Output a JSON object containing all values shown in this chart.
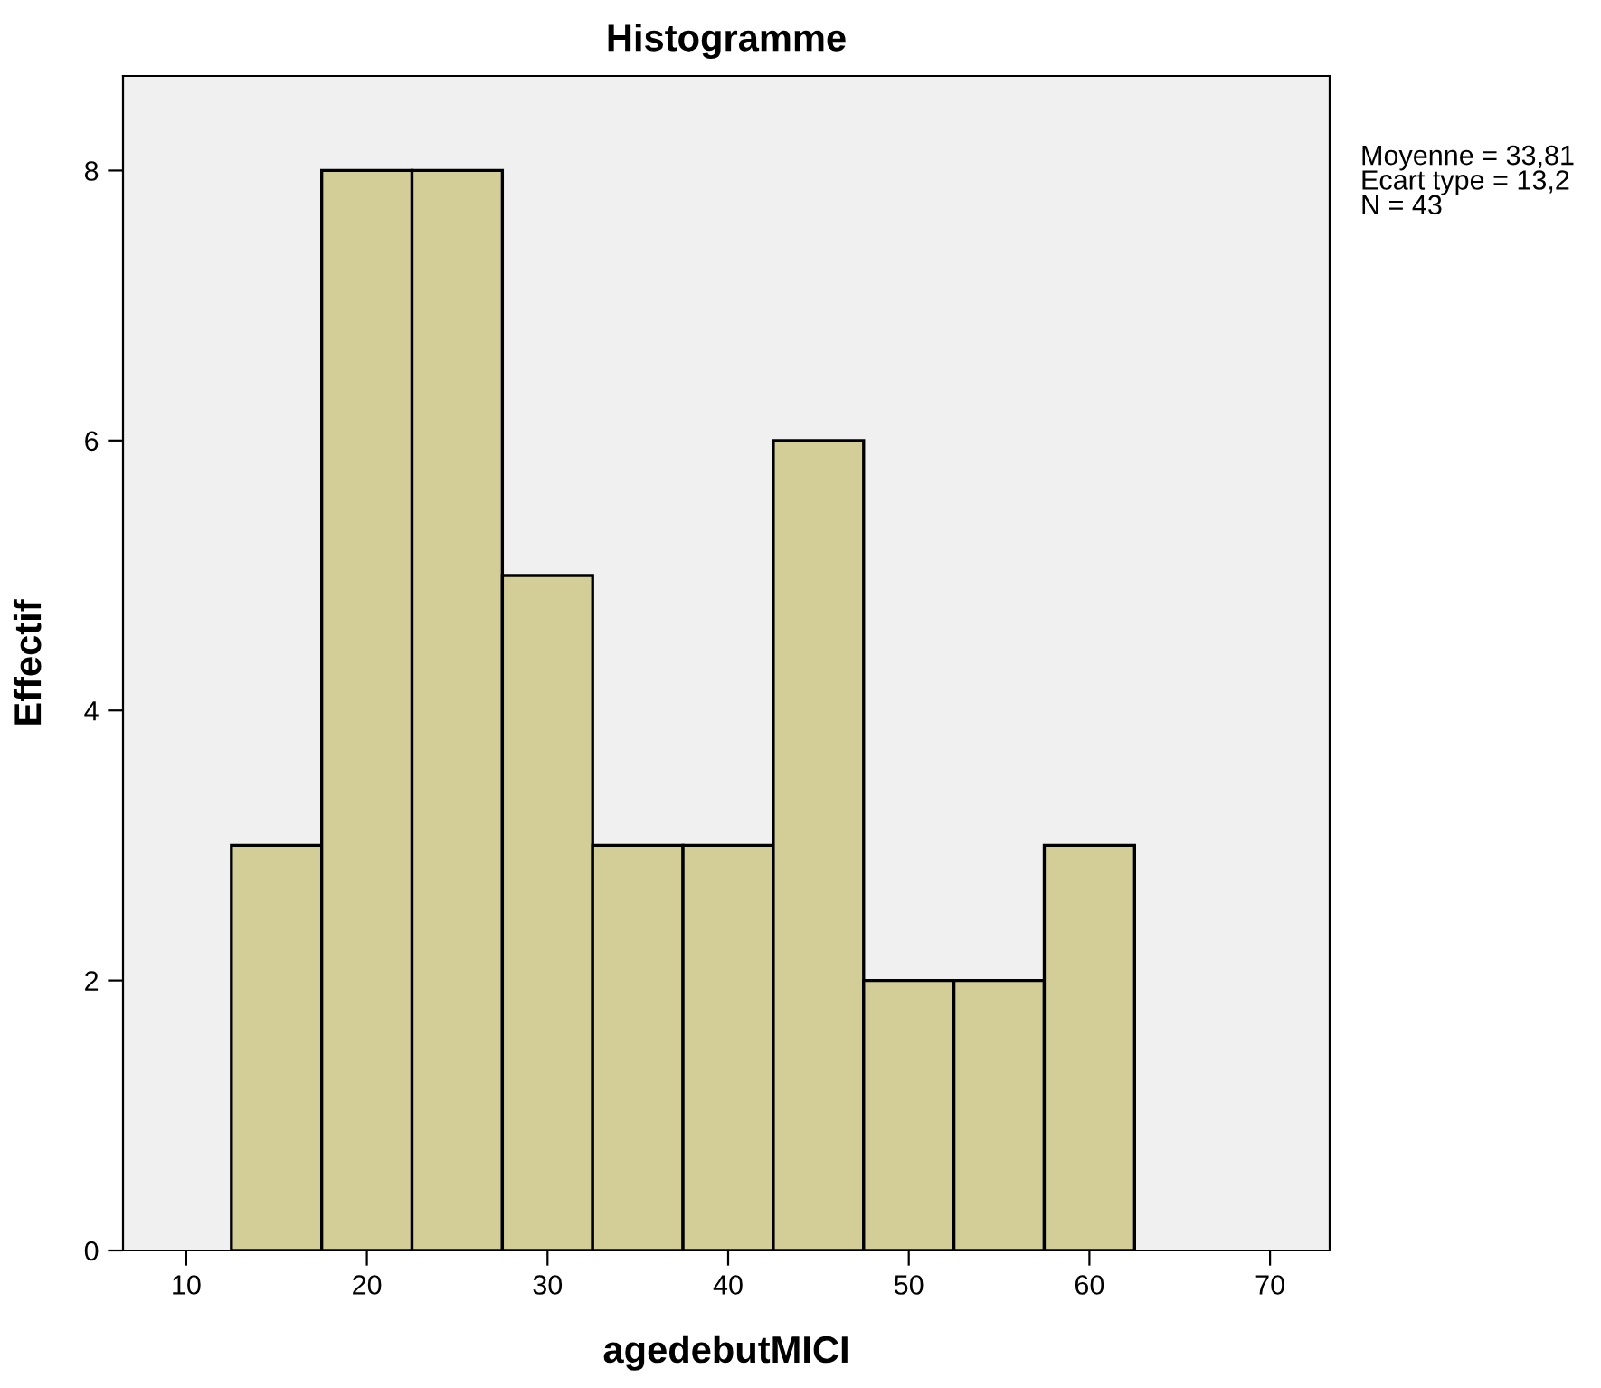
{
  "chart_data": {
    "type": "histogram",
    "title": "Histogramme",
    "xlabel": "agedebutMICI",
    "ylabel": "Effectif",
    "bins": [
      12.5,
      17.5,
      22.5,
      27.5,
      32.5,
      37.5,
      42.5,
      47.5,
      52.5,
      57.5,
      62.5
    ],
    "values": [
      3,
      8,
      8,
      5,
      3,
      3,
      6,
      2,
      2,
      3
    ],
    "color": "#d3ce97",
    "xlim": [
      6.5,
      73.3
    ],
    "xticks": [
      10,
      20,
      30,
      40,
      50,
      60,
      70
    ],
    "ylim": [
      0,
      8.7
    ],
    "yticks": [
      0,
      2,
      4,
      6,
      8
    ],
    "grid": false,
    "annotations": [
      "Moyenne = 33,81\nEcart type = 13,2\nN = 43"
    ]
  }
}
